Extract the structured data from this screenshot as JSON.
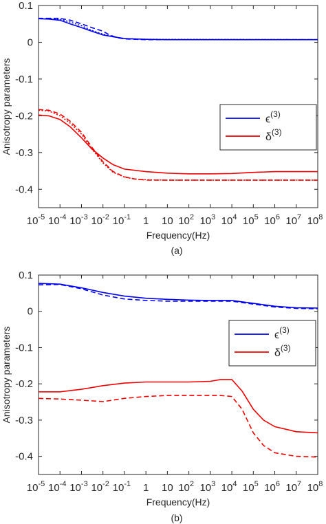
{
  "chart_data": [
    {
      "type": "line",
      "caption": "(a)",
      "xlabel": "Frequency(Hz)",
      "ylabel": "Anisotropy parameters",
      "x_scale": "log",
      "xlim": [
        1e-05,
        100000000
      ],
      "ylim": [
        -0.45,
        0.1
      ],
      "x_ticks": [
        {
          "base": "10",
          "exp": "-5"
        },
        {
          "base": "10",
          "exp": "-4"
        },
        {
          "base": "10",
          "exp": "-3"
        },
        {
          "base": "10",
          "exp": "-2"
        },
        {
          "base": "10",
          "exp": "-1"
        },
        {
          "base": "1",
          "exp": ""
        },
        {
          "base": "10",
          "exp": ""
        },
        {
          "base": "10",
          "exp": "2"
        },
        {
          "base": "10",
          "exp": "3"
        },
        {
          "base": "10",
          "exp": "4"
        },
        {
          "base": "10",
          "exp": "5"
        },
        {
          "base": "10",
          "exp": "6"
        },
        {
          "base": "10",
          "exp": "7"
        },
        {
          "base": "10",
          "exp": "8"
        }
      ],
      "y_ticks": [
        "0.1",
        "0",
        "-0.1",
        "-0.2",
        "-0.3",
        "-0.4"
      ],
      "legend": [
        {
          "base": "ϵ",
          "sup": "(3)",
          "color": "#0000ee"
        },
        {
          "base": "δ",
          "sup": "(3)",
          "color": "#ee0000"
        }
      ],
      "legend_position": "right",
      "series": [
        {
          "color": "#0000ee",
          "style": "solid",
          "x": [
            1e-05,
            3e-05,
            0.0001,
            0.0003,
            0.001,
            0.003,
            0.01,
            0.03,
            0.1,
            1,
            10,
            100000000
          ],
          "y": [
            0.064,
            0.063,
            0.06,
            0.05,
            0.04,
            0.03,
            0.02,
            0.015,
            0.01,
            0.008,
            0.007,
            0.007
          ]
        },
        {
          "color": "#0000ee",
          "style": "dashed",
          "x": [
            1e-05,
            3e-05,
            0.0001,
            0.0003,
            0.001,
            0.003,
            0.01,
            0.02,
            0.05,
            0.1,
            1,
            100000000
          ],
          "y": [
            0.065,
            0.065,
            0.065,
            0.06,
            0.05,
            0.04,
            0.03,
            0.02,
            0.012,
            0.009,
            0.007,
            0.007
          ]
        },
        {
          "color": "#0000ee",
          "style": "dotted",
          "x": [
            1e-05,
            3e-05,
            0.0001,
            0.0003,
            0.001,
            0.003,
            0.01,
            0.03,
            0.1,
            1,
            100000000
          ],
          "y": [
            0.064,
            0.064,
            0.063,
            0.055,
            0.045,
            0.032,
            0.022,
            0.015,
            0.01,
            0.008,
            0.007
          ]
        },
        {
          "color": "#ee0000",
          "style": "solid",
          "x": [
            1e-05,
            3e-05,
            0.0001,
            0.0003,
            0.001,
            0.003,
            0.01,
            0.03,
            0.1,
            1,
            10,
            100,
            1000,
            10000,
            100000,
            1000000,
            100000000
          ],
          "y": [
            -0.198,
            -0.2,
            -0.21,
            -0.23,
            -0.26,
            -0.29,
            -0.315,
            -0.333,
            -0.345,
            -0.352,
            -0.356,
            -0.358,
            -0.358,
            -0.357,
            -0.354,
            -0.352,
            -0.352
          ]
        },
        {
          "color": "#ee0000",
          "style": "dashed",
          "x": [
            1e-05,
            3e-05,
            0.0001,
            0.0003,
            0.001,
            0.003,
            0.01,
            0.03,
            0.1,
            0.3,
            1,
            10,
            100000000
          ],
          "y": [
            -0.183,
            -0.185,
            -0.195,
            -0.215,
            -0.245,
            -0.285,
            -0.325,
            -0.352,
            -0.366,
            -0.372,
            -0.375,
            -0.375,
            -0.375
          ]
        },
        {
          "color": "#ee0000",
          "style": "dotted",
          "x": [
            1e-05,
            3e-05,
            0.0001,
            0.0003,
            0.001,
            0.003,
            0.01,
            0.03,
            0.1,
            0.3,
            1,
            10,
            100000000
          ],
          "y": [
            -0.185,
            -0.187,
            -0.2,
            -0.22,
            -0.25,
            -0.29,
            -0.328,
            -0.354,
            -0.367,
            -0.372,
            -0.374,
            -0.375,
            -0.375
          ]
        }
      ]
    },
    {
      "type": "line",
      "caption": "(b)",
      "xlabel": "Frequency(Hz)",
      "ylabel": "Anisotropy parameters",
      "x_scale": "log",
      "xlim": [
        1e-05,
        100000000
      ],
      "ylim": [
        -0.45,
        0.1
      ],
      "x_ticks": [
        {
          "base": "10",
          "exp": "-5"
        },
        {
          "base": "10",
          "exp": "-4"
        },
        {
          "base": "10",
          "exp": "-3"
        },
        {
          "base": "10",
          "exp": "-2"
        },
        {
          "base": "10",
          "exp": "-1"
        },
        {
          "base": "1",
          "exp": ""
        },
        {
          "base": "10",
          "exp": ""
        },
        {
          "base": "10",
          "exp": "2"
        },
        {
          "base": "10",
          "exp": "3"
        },
        {
          "base": "10",
          "exp": "4"
        },
        {
          "base": "10",
          "exp": "5"
        },
        {
          "base": "10",
          "exp": "6"
        },
        {
          "base": "10",
          "exp": "7"
        },
        {
          "base": "10",
          "exp": "8"
        }
      ],
      "y_ticks": [
        "0.1",
        "0",
        "-0.1",
        "-0.2",
        "-0.3",
        "-0.4"
      ],
      "legend": [
        {
          "base": "ϵ",
          "sup": "(3)",
          "color": "#0000ee"
        },
        {
          "base": "δ",
          "sup": "(3)",
          "color": "#ee0000"
        }
      ],
      "legend_position": "right",
      "series": [
        {
          "color": "#0000ee",
          "style": "solid",
          "x": [
            1e-05,
            0.0001,
            0.001,
            0.01,
            0.1,
            1,
            10,
            100,
            1000,
            10000,
            100000,
            1000000,
            10000000,
            100000000
          ],
          "y": [
            0.077,
            0.075,
            0.065,
            0.052,
            0.042,
            0.036,
            0.033,
            0.031,
            0.03,
            0.03,
            0.022,
            0.014,
            0.01,
            0.009
          ]
        },
        {
          "color": "#0000ee",
          "style": "dashed",
          "x": [
            1e-05,
            0.0001,
            0.001,
            0.01,
            0.1,
            1,
            10,
            100,
            1000,
            10000,
            100000,
            1000000,
            10000000,
            100000000
          ],
          "y": [
            0.073,
            0.074,
            0.062,
            0.045,
            0.034,
            0.03,
            0.028,
            0.028,
            0.028,
            0.028,
            0.02,
            0.012,
            0.008,
            0.007
          ]
        },
        {
          "color": "#ee0000",
          "style": "solid",
          "x": [
            1e-05,
            0.0001,
            0.001,
            0.01,
            0.1,
            1,
            10,
            100,
            1000,
            3000,
            10000,
            30000,
            100000,
            300000,
            1000000,
            10000000,
            100000000
          ],
          "y": [
            -0.222,
            -0.222,
            -0.215,
            -0.205,
            -0.198,
            -0.195,
            -0.195,
            -0.195,
            -0.193,
            -0.188,
            -0.188,
            -0.22,
            -0.27,
            -0.3,
            -0.318,
            -0.332,
            -0.335
          ]
        },
        {
          "color": "#ee0000",
          "style": "dashed",
          "x": [
            1e-05,
            0.0001,
            0.001,
            0.01,
            0.1,
            1,
            10,
            100,
            1000,
            3000,
            10000,
            30000,
            100000,
            300000,
            1000000,
            10000000,
            100000000
          ],
          "y": [
            -0.24,
            -0.242,
            -0.245,
            -0.249,
            -0.24,
            -0.235,
            -0.232,
            -0.232,
            -0.232,
            -0.232,
            -0.235,
            -0.27,
            -0.335,
            -0.37,
            -0.39,
            -0.4,
            -0.402
          ]
        }
      ]
    }
  ]
}
